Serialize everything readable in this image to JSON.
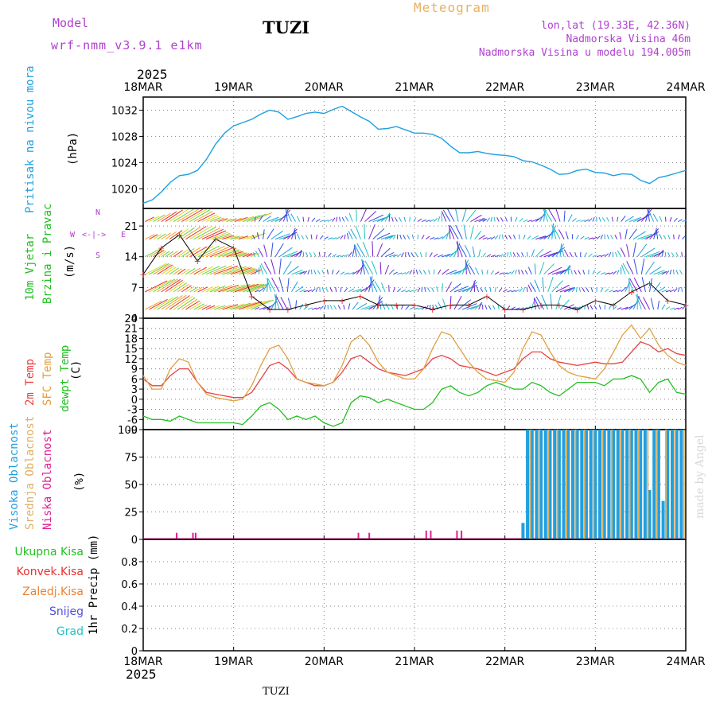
{
  "header": {
    "model_label": "Model",
    "model_name": "wrf-nmm_v3.9.1 e1km",
    "station": "TUZI",
    "meteogram_label": "Meteogram",
    "coords": "lon,lat (19.33E, 42.36N)",
    "altitude": "Nadmorska Visina 46m",
    "model_altitude": "Nadmorska Visina u modelu 194.005m",
    "year": "2025"
  },
  "footer": {
    "year": "2025",
    "station": "TUZI",
    "credit": "made by Angel"
  },
  "colors": {
    "pressure": "#1ea0e0",
    "temp2m": "#e84040",
    "sfc_temp": "#e0a040",
    "dewpoint": "#20c020",
    "high_cloud": "#20a0e0",
    "mid_cloud": "#e0b060",
    "low_cloud": "#e02090",
    "wind_speed": "#e83030",
    "model_label": "#b040d0",
    "total_precip": "#20c020",
    "conv_precip": "#e83030",
    "frozen_precip": "#f08030",
    "snow": "#5050e0",
    "graupel": "#20c0c0"
  },
  "x_axis": {
    "labels": [
      "18MAR",
      "19MAR",
      "20MAR",
      "21MAR",
      "22MAR",
      "23MAR",
      "24MAR"
    ]
  },
  "panels": {
    "pressure": {
      "label": "Pritisak na nivou mora",
      "unit": "(hPa)"
    },
    "wind": {
      "label1": "10m Vjetar",
      "label2": "Brzina i Pravac",
      "unit": "(m/s)",
      "compass_n": "N",
      "compass_s": "S",
      "compass_e": "E",
      "compass_w": "W",
      "compass_arrows": "<-|->"
    },
    "temperature": {
      "label1": "2m Temp",
      "label2": "SFC Temp",
      "label3": "dewpt Temp",
      "unit": "(C)"
    },
    "cloud": {
      "label1": "Visoka Oblacnost",
      "label2": "Srednja Oblacnost",
      "label3": "Niska Oblacnost",
      "unit": "(%)"
    },
    "precip": {
      "unit": "1hr Precip (mm)",
      "legend": [
        "Ukupna Kisa",
        "Konvek.Kisa",
        "Zaledj.Kisa",
        "Snijeg",
        "Grad"
      ]
    }
  },
  "chart_data": [
    {
      "type": "line",
      "panel": "pressure",
      "ylabel": "(hPa)",
      "ylim": [
        1017,
        1034
      ],
      "yticks": [
        1020,
        1024,
        1028,
        1032
      ],
      "grid": true,
      "x_days": [
        0,
        0.1,
        0.2,
        0.3,
        0.4,
        0.5,
        0.6,
        0.7,
        0.8,
        0.9,
        1.0,
        1.1,
        1.2,
        1.3,
        1.4,
        1.5,
        1.6,
        1.7,
        1.8,
        1.9,
        2.0,
        2.1,
        2.2,
        2.3,
        2.4,
        2.5,
        2.6,
        2.7,
        2.8,
        2.9,
        3.0,
        3.1,
        3.2,
        3.3,
        3.4,
        3.5,
        3.6,
        3.7,
        3.8,
        3.9,
        4.0,
        4.1,
        4.2,
        4.3,
        4.4,
        4.5,
        4.6,
        4.7,
        4.8,
        4.9,
        5.0,
        5.1,
        5.2,
        5.3,
        5.4,
        5.5,
        5.6,
        5.7,
        5.8,
        5.9,
        6.0
      ],
      "series": [
        {
          "values": [
            1017.8,
            1018.3,
            1019.5,
            1021.0,
            1022.0,
            1022.2,
            1022.8,
            1024.5,
            1026.8,
            1028.5,
            1029.6,
            1030.1,
            1030.6,
            1031.4,
            1032.0,
            1031.7,
            1030.6,
            1031.0,
            1031.5,
            1031.7,
            1031.5,
            1032.1,
            1032.6,
            1031.8,
            1031.0,
            1030.3,
            1029.1,
            1029.2,
            1029.5,
            1029.0,
            1028.5,
            1028.5,
            1028.3,
            1027.7,
            1026.5,
            1025.5,
            1025.5,
            1025.7,
            1025.4,
            1025.2,
            1025.1,
            1024.9,
            1024.3,
            1024.1,
            1023.6,
            1023.0,
            1022.2,
            1022.3,
            1022.8,
            1023.0,
            1022.5,
            1022.4,
            1022.0,
            1022.3,
            1022.2,
            1021.3,
            1020.8,
            1021.7,
            1022.0,
            1022.4,
            1022.8
          ]
        }
      ]
    },
    {
      "type": "line",
      "panel": "wind",
      "ylabel": "(m/s)",
      "ylim": [
        0,
        25
      ],
      "yticks": [
        0,
        7,
        14,
        21
      ],
      "grid": true,
      "x_days": [
        0,
        0.2,
        0.4,
        0.6,
        0.8,
        1.0,
        1.2,
        1.4,
        1.6,
        1.8,
        2.0,
        2.2,
        2.4,
        2.6,
        2.8,
        3.0,
        3.2,
        3.4,
        3.6,
        3.8,
        4.0,
        4.2,
        4.4,
        4.6,
        4.8,
        5.0,
        5.2,
        5.4,
        5.6,
        5.8,
        6.0
      ],
      "series": [
        {
          "values": [
            10,
            16,
            19,
            13,
            18,
            16,
            5,
            2,
            2,
            3,
            4,
            4,
            5,
            3,
            3,
            3,
            2,
            3,
            3,
            5,
            2,
            2,
            3,
            3,
            2,
            4,
            3,
            6,
            8,
            4,
            3
          ]
        }
      ]
    },
    {
      "type": "line",
      "panel": "temperature",
      "ylabel": "(C)",
      "ylim": [
        -9,
        24
      ],
      "yticks": [
        -9,
        -6,
        -3,
        0,
        3,
        6,
        9,
        12,
        15,
        18,
        21,
        24
      ],
      "grid": true,
      "x_days": [
        0,
        0.1,
        0.2,
        0.3,
        0.4,
        0.5,
        0.6,
        0.7,
        0.8,
        0.9,
        1.0,
        1.1,
        1.2,
        1.3,
        1.4,
        1.5,
        1.6,
        1.7,
        1.8,
        1.9,
        2.0,
        2.1,
        2.2,
        2.3,
        2.4,
        2.5,
        2.6,
        2.7,
        2.8,
        2.9,
        3.0,
        3.1,
        3.2,
        3.3,
        3.4,
        3.5,
        3.6,
        3.7,
        3.8,
        3.9,
        4.0,
        4.1,
        4.2,
        4.3,
        4.4,
        4.5,
        4.6,
        4.7,
        4.8,
        4.9,
        5.0,
        5.1,
        5.2,
        5.3,
        5.4,
        5.5,
        5.6,
        5.7,
        5.8,
        5.9,
        6.0
      ],
      "series": [
        {
          "values": [
            6,
            4,
            4,
            7,
            9,
            9,
            5,
            2,
            1.5,
            1,
            0.5,
            0.5,
            2,
            6,
            10,
            11,
            9,
            6,
            5,
            4,
            4,
            5,
            8,
            12,
            13,
            11,
            9,
            8,
            7.5,
            7,
            8,
            9,
            12,
            13,
            12,
            10,
            9.5,
            9,
            8,
            7,
            8,
            9,
            12,
            14,
            14,
            12,
            11,
            10.5,
            10,
            10.5,
            11,
            10.5,
            10.5,
            11,
            14,
            17,
            16,
            14,
            15,
            13.5,
            13
          ]
        },
        {
          "values": [
            7,
            3,
            3,
            9,
            12,
            11,
            5,
            1.5,
            0.5,
            0,
            -0.5,
            0,
            4,
            10,
            15,
            16,
            12,
            6,
            5,
            4.5,
            4,
            5,
            10,
            17,
            19,
            16,
            11,
            8,
            7,
            6,
            6,
            9,
            15,
            20,
            19,
            15,
            11,
            8,
            6,
            5.5,
            5,
            8,
            15,
            20,
            19,
            14,
            10,
            8,
            7,
            6.5,
            6,
            9,
            14,
            19,
            22,
            18,
            21,
            16,
            13,
            11,
            10
          ]
        },
        {
          "values": [
            -5,
            -6,
            -6,
            -6.5,
            -5,
            -6,
            -7,
            -7,
            -7,
            -7,
            -7,
            -7.5,
            -5,
            -2,
            -1,
            -3,
            -6,
            -5,
            -6,
            -5,
            -7,
            -8,
            -7,
            -1,
            1,
            0.5,
            -1,
            0,
            -1,
            -2,
            -3,
            -3,
            -1,
            3,
            4,
            2,
            1,
            2,
            4,
            5,
            4,
            3,
            3,
            5,
            4,
            2,
            1,
            3,
            5,
            5,
            5,
            4,
            6,
            6,
            7,
            6,
            2,
            5,
            6,
            2,
            1.5
          ]
        }
      ]
    },
    {
      "type": "bar",
      "panel": "cloud",
      "ylabel": "(%)",
      "ylim": [
        0,
        100
      ],
      "yticks": [
        0,
        25,
        50,
        75,
        100
      ],
      "grid": true,
      "series": [
        {
          "name": "Visoka Oblacnost",
          "x_days": [
            4.2,
            4.25,
            4.3,
            4.35,
            4.4,
            4.45,
            4.5,
            4.55,
            4.6,
            4.65,
            4.7,
            4.75,
            4.8,
            4.85,
            4.9,
            4.95,
            5.0,
            5.05,
            5.1,
            5.15,
            5.2,
            5.25,
            5.3,
            5.35,
            5.4,
            5.45,
            5.5,
            5.55,
            5.6,
            5.65,
            5.7,
            5.75,
            5.8,
            5.85,
            5.9,
            5.95
          ],
          "values": [
            15,
            100,
            100,
            100,
            100,
            100,
            100,
            100,
            100,
            100,
            100,
            100,
            100,
            100,
            100,
            100,
            100,
            100,
            100,
            100,
            100,
            100,
            100,
            100,
            100,
            100,
            100,
            100,
            45,
            100,
            100,
            35,
            100,
            100,
            100,
            100
          ]
        },
        {
          "name": "Srednja Oblacnost",
          "x_days": [
            4.28,
            4.38,
            4.48,
            4.58,
            4.68,
            4.78,
            4.88,
            4.98,
            5.08,
            5.18,
            5.28,
            5.38,
            5.48,
            5.58,
            5.68,
            5.78,
            5.88,
            5.98
          ],
          "values": [
            100,
            100,
            100,
            100,
            100,
            100,
            100,
            100,
            100,
            100,
            100,
            100,
            100,
            100,
            100,
            100,
            100,
            100
          ]
        },
        {
          "name": "Niska Oblacnost",
          "x_days": [
            0.37,
            0.55,
            0.58,
            2.38,
            2.5,
            3.13,
            3.18,
            3.47,
            3.52
          ],
          "values": [
            6,
            6,
            6,
            6,
            6,
            8,
            8,
            8,
            8
          ]
        }
      ]
    },
    {
      "type": "bar",
      "panel": "precip",
      "ylabel": "1hr Precip (mm)",
      "ylim": [
        0,
        1
      ],
      "yticks": [
        0,
        0.2,
        0.4,
        0.6,
        0.8
      ],
      "grid": true,
      "series": []
    }
  ]
}
